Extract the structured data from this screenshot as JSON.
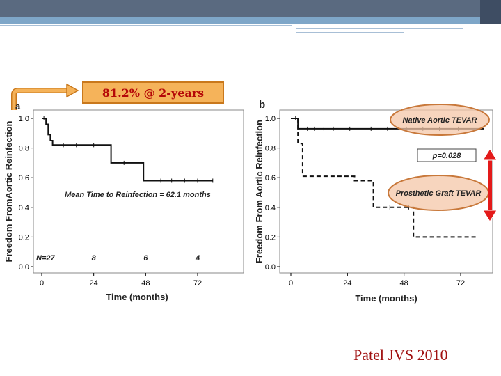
{
  "slide": {
    "callout_text": "81.2% @ 2-years",
    "citation": "Patel JVS 2010",
    "accent_color": "#f5b35a",
    "callout_text_color": "#b50808",
    "arrow_color": "#e31a1a"
  },
  "chart_data": [
    {
      "type": "line",
      "panel_label": "a",
      "xlabel": "Time (months)",
      "ylabel": "Freedom FromAortic Reinfection",
      "xlim": [
        0,
        96
      ],
      "ylim": [
        0,
        1.05
      ],
      "x_ticks": [
        0,
        24,
        48,
        72
      ],
      "y_ticks": [
        "0.0",
        "0.2",
        "0.4",
        "0.6",
        "0.8",
        "1.0"
      ],
      "annotation": "Mean Time to Reinfection = 62.1 months",
      "at_risk": {
        "label": "N=27",
        "values": [
          "8",
          "6",
          "4"
        ],
        "times": [
          24,
          48,
          72
        ]
      },
      "series": [
        {
          "style": "solid",
          "steps": [
            [
              0,
              1.0
            ],
            [
              2,
              1.0
            ],
            [
              2,
              0.96
            ],
            [
              3,
              0.96
            ],
            [
              3,
              0.89
            ],
            [
              4,
              0.89
            ],
            [
              4,
              0.85
            ],
            [
              5,
              0.85
            ],
            [
              5,
              0.82
            ],
            [
              32,
              0.82
            ],
            [
              32,
              0.7
            ],
            [
              47,
              0.7
            ],
            [
              47,
              0.58
            ],
            [
              79,
              0.58
            ]
          ],
          "censored": [
            1,
            10,
            16,
            24,
            38,
            55,
            60,
            66,
            72,
            79
          ]
        }
      ]
    },
    {
      "type": "line",
      "panel_label": "b",
      "xlabel": "Time (months)",
      "ylabel": "Freedom From Aortic Reinfection",
      "xlim": [
        0,
        84
      ],
      "ylim": [
        0,
        1.05
      ],
      "x_ticks": [
        0,
        24,
        48,
        72
      ],
      "y_ticks": [
        "0.0",
        "0.2",
        "0.4",
        "0.6",
        "0.8",
        "1.0"
      ],
      "annotation": "p=0.028",
      "series": [
        {
          "name": "Native Aortic TEVAR",
          "style": "solid",
          "steps": [
            [
              0,
              1.0
            ],
            [
              3,
              1.0
            ],
            [
              3,
              0.93
            ],
            [
              82,
              0.93
            ]
          ],
          "censored": [
            2,
            7,
            10,
            14,
            18,
            25,
            34,
            41,
            49,
            56,
            63,
            71
          ]
        },
        {
          "name": "Prosthetic Graft TEVAR",
          "style": "dashed",
          "steps": [
            [
              0,
              1.0
            ],
            [
              3,
              1.0
            ],
            [
              3,
              0.83
            ],
            [
              5,
              0.83
            ],
            [
              5,
              0.61
            ],
            [
              27,
              0.61
            ],
            [
              27,
              0.58
            ],
            [
              35,
              0.58
            ],
            [
              35,
              0.4
            ],
            [
              52,
              0.4
            ],
            [
              52,
              0.2
            ],
            [
              79,
              0.2
            ]
          ],
          "censored": [
            42,
            50
          ]
        }
      ]
    }
  ]
}
